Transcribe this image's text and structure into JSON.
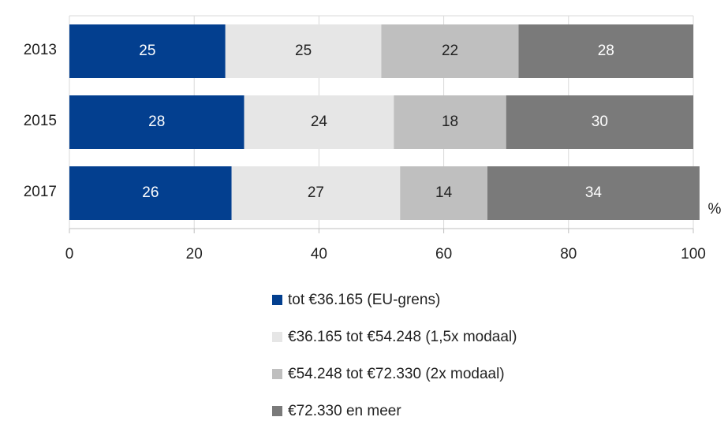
{
  "chart_data": {
    "type": "stacked_barh",
    "categories": [
      "2013",
      "2015",
      "2017"
    ],
    "series": [
      {
        "name": "tot €36.165 (EU-grens)",
        "color": "#033f8f",
        "label_color": "#ffffff",
        "values": [
          25,
          28,
          26
        ]
      },
      {
        "name": "€36.165 tot €54.248 (1,5x modaal)",
        "color": "#e6e6e6",
        "label_color": "#222222",
        "values": [
          25,
          24,
          27
        ]
      },
      {
        "name": "€54.248 tot €72.330 (2x modaal)",
        "color": "#bfbfbf",
        "label_color": "#222222",
        "values": [
          22,
          18,
          14
        ]
      },
      {
        "name": "€72.330 en meer",
        "color": "#7a7a7a",
        "label_color": "#ffffff",
        "values": [
          28,
          30,
          34
        ]
      }
    ],
    "x_label": "%",
    "xlim": [
      0,
      100
    ],
    "xticks": [
      0,
      20,
      40,
      60,
      80,
      100
    ],
    "grid": true
  }
}
